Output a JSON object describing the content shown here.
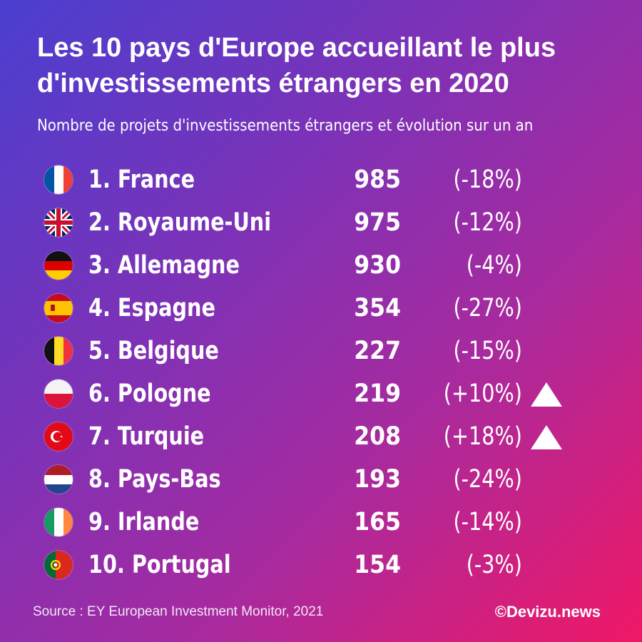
{
  "header": {
    "title_line1": "Les 10 pays d'Europe accueillant le plus",
    "title_line2": "d'investissements étrangers en 2020",
    "subtitle": "Nombre de projets d'investissements étrangers et évolution sur un an"
  },
  "chart_data": {
    "type": "table",
    "title": "Les 10 pays d'Europe accueillant le plus d'investissements étrangers en 2020",
    "subtitle": "Nombre de projets d'investissements étrangers et évolution sur un an",
    "rows": [
      {
        "rank_label": "1. France",
        "value": 985,
        "value_label": "985",
        "change_label": "(-18%)",
        "change": -18,
        "increase": false,
        "flag": "france-flag-icon"
      },
      {
        "rank_label": "2. Royaume-Uni",
        "value": 975,
        "value_label": "975",
        "change_label": "(-12%)",
        "change": -12,
        "increase": false,
        "flag": "united-kingdom-flag-icon"
      },
      {
        "rank_label": "3. Allemagne",
        "value": 930,
        "value_label": "930",
        "change_label": "(-4%)",
        "change": -4,
        "increase": false,
        "flag": "germany-flag-icon"
      },
      {
        "rank_label": "4. Espagne",
        "value": 354,
        "value_label": "354",
        "change_label": "(-27%)",
        "change": -27,
        "increase": false,
        "flag": "spain-flag-icon"
      },
      {
        "rank_label": "5. Belgique",
        "value": 227,
        "value_label": "227",
        "change_label": "(-15%)",
        "change": -15,
        "increase": false,
        "flag": "belgium-flag-icon"
      },
      {
        "rank_label": "6. Pologne",
        "value": 219,
        "value_label": "219",
        "change_label": "(+10%)",
        "change": 10,
        "increase": true,
        "flag": "poland-flag-icon"
      },
      {
        "rank_label": "7. Turquie",
        "value": 208,
        "value_label": "208",
        "change_label": "(+18%)",
        "change": 18,
        "increase": true,
        "flag": "turkey-flag-icon"
      },
      {
        "rank_label": "8. Pays-Bas",
        "value": 193,
        "value_label": "193",
        "change_label": "(-24%)",
        "change": -24,
        "increase": false,
        "flag": "netherlands-flag-icon"
      },
      {
        "rank_label": "9. Irlande",
        "value": 165,
        "value_label": "165",
        "change_label": "(-14%)",
        "change": -14,
        "increase": false,
        "flag": "ireland-flag-icon"
      },
      {
        "rank_label": "10. Portugal",
        "value": 154,
        "value_label": "154",
        "change_label": "(-3%)",
        "change": -3,
        "increase": false,
        "flag": "portugal-flag-icon"
      }
    ]
  },
  "footer": {
    "source": "Source : EY European Investment Monitor, 2021",
    "brand": "©Devizu.news"
  },
  "colors": {
    "gradient_start": "#4a3fd0",
    "gradient_mid": "#a82a9e",
    "gradient_end": "#f01866",
    "text": "#ffffff"
  }
}
